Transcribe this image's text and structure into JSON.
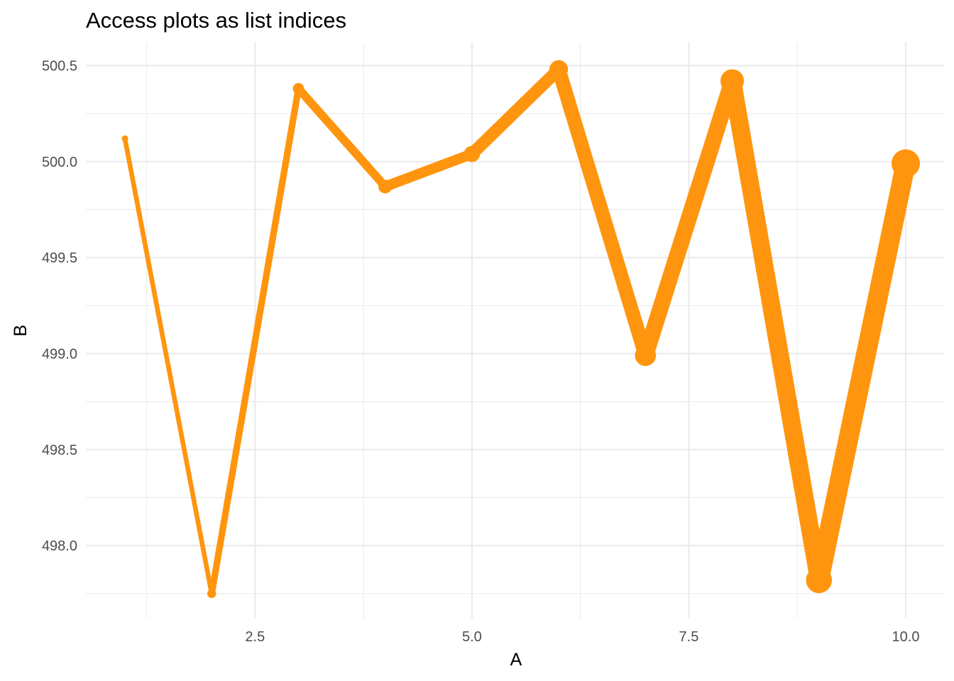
{
  "chart_data": {
    "type": "line",
    "title": "Access plots as list indices",
    "xlabel": "A",
    "ylabel": "B",
    "x": [
      1,
      2,
      3,
      4,
      5,
      6,
      7,
      8,
      9,
      10
    ],
    "series": [
      {
        "values": [
          500.12,
          497.75,
          500.38,
          499.87,
          500.04,
          500.48,
          498.99,
          500.42,
          497.82,
          499.99
        ]
      }
    ],
    "size_encoding": "line width and point size grow with A",
    "xlim": [
      0.55,
      10.45
    ],
    "ylim": [
      497.62,
      500.62
    ],
    "x_ticks": [
      2.5,
      5.0,
      7.5,
      10.0
    ],
    "x_tick_labels": [
      "2.5",
      "5.0",
      "7.5",
      "10.0"
    ],
    "y_ticks": [
      498.0,
      498.5,
      499.0,
      499.5,
      500.0,
      500.5
    ],
    "y_tick_labels": [
      "498.0",
      "498.5",
      "499.0",
      "499.5",
      "500.0",
      "500.5"
    ],
    "grid": true,
    "legend": "none",
    "colors": {
      "series": "#FF950E",
      "grid": "#EBEBEB",
      "tick_text": "#4D4D4D",
      "background": "#FFFFFF"
    }
  }
}
